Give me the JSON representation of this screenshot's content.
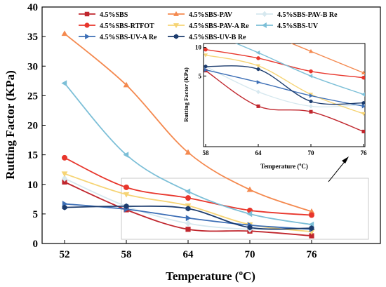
{
  "chart_data": [
    {
      "type": "line",
      "xlabel": "Temperature (°C)",
      "xlabel_main": "Temperature (",
      "xlabel_sup": "o",
      "xlabel_tail": "C)",
      "ylabel": "Rutting Factor (KPa)",
      "categories": [
        "52",
        "58",
        "64",
        "70",
        "76"
      ],
      "x": [
        52,
        58,
        64,
        70,
        76
      ],
      "ylim": [
        0,
        40
      ],
      "yticks": [
        "0",
        "5",
        "10",
        "15",
        "20",
        "25",
        "30",
        "35",
        "40"
      ],
      "grid": false,
      "legend_position": "top",
      "series": [
        {
          "name": "4.5%SBS",
          "color": "#c0262d",
          "marker": "square",
          "values": [
            10.4,
            5.7,
            2.4,
            2.1,
            1.3
          ]
        },
        {
          "name": "4.5%SBS-PAV",
          "color": "#f4894f",
          "marker": "triangle-up",
          "values": [
            35.5,
            26.8,
            15.4,
            9.1,
            5.4
          ]
        },
        {
          "name": "4.5%SBS-PAV-B Re",
          "color": "#d6e8ef",
          "marker": "diamond",
          "values": [
            11.0,
            6.3,
            3.4,
            2.4,
            2.5
          ]
        },
        {
          "name": "4.5%SBS-RTFOT",
          "color": "#e8362c",
          "marker": "circle",
          "values": [
            14.5,
            9.5,
            7.7,
            5.6,
            4.8
          ]
        },
        {
          "name": "4.5%SBS-PAV-A Re",
          "color": "#f6d475",
          "marker": "triangle-down",
          "values": [
            11.8,
            8.3,
            6.4,
            3.2,
            2.0
          ]
        },
        {
          "name": "4.5%SBS-UV",
          "color": "#7cbfd7",
          "marker": "triangle-left",
          "values": [
            27.1,
            15.0,
            8.8,
            5.0,
            3.2
          ]
        },
        {
          "name": "4.5%SBS-UV-A Re",
          "color": "#3d6fb6",
          "marker": "triangle-right",
          "values": [
            6.7,
            5.8,
            4.3,
            3.1,
            2.4
          ]
        },
        {
          "name": "4.5%SBS-UV-B Re",
          "color": "#1c3c6e",
          "marker": "hexagon",
          "values": [
            6.1,
            6.3,
            5.9,
            2.7,
            2.6
          ]
        }
      ]
    },
    {
      "type": "line",
      "role": "inset",
      "xlabel_main": "Temperature (",
      "xlabel_sup": "o",
      "xlabel_tail": "C)",
      "ylabel": "Rutting Factor (KPa)",
      "categories": [
        "58",
        "64",
        "70",
        "76"
      ],
      "x": [
        58,
        64,
        70,
        76
      ],
      "ylim": [
        0.9,
        11
      ],
      "ytick_values": [
        5,
        10
      ],
      "yticks": [
        "5",
        "10"
      ]
    }
  ]
}
